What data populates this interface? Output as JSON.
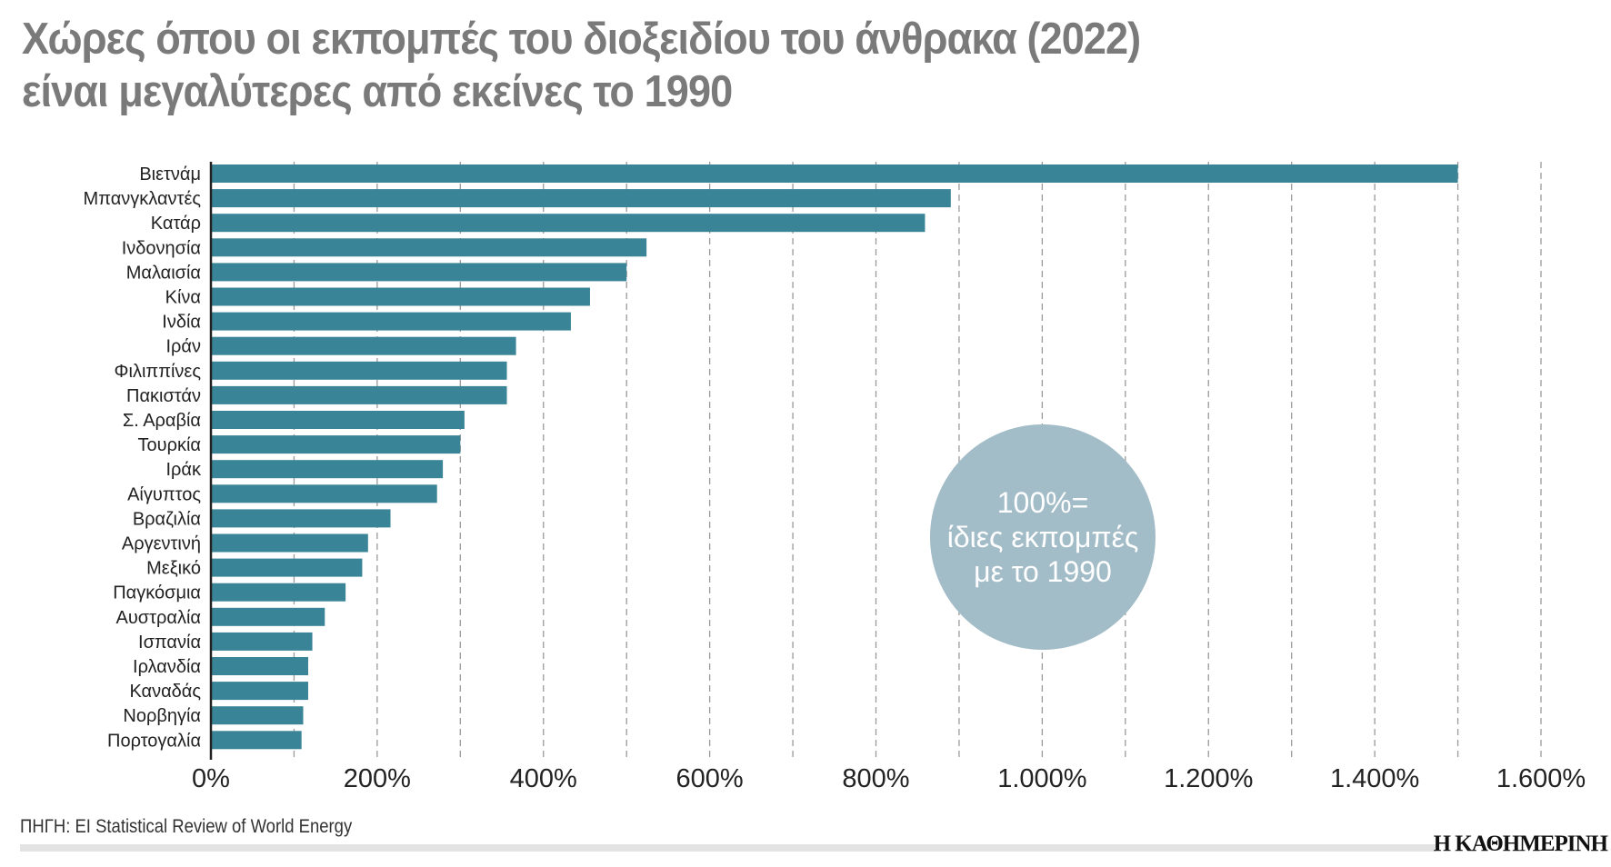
{
  "title_line1": "Χώρες όπου οι εκπομπές του διοξειδίου του άνθρακα (2022)",
  "title_line2": "είναι μεγαλύτερες από εκείνες το 1990",
  "source": "ΠΗΓΗ: EI Statistical Review of World Energy",
  "logo": "Η ΚΑΘΗΜΕΡΙΝΗ",
  "colors": {
    "bar": "#3a8497",
    "bubble": "#a2bcc8",
    "title": "#7a7a7a",
    "grid": "#9a9a9a"
  },
  "chart_data": {
    "type": "bar",
    "orientation": "horizontal",
    "categories": [
      "Βιετνάμ",
      "Μπανγκλαντές",
      "Κατάρ",
      "Ινδονησία",
      "Μαλαισία",
      "Κίνα",
      "Ινδία",
      "Ιράν",
      "Φιλιππίνες",
      "Πακιστάν",
      "Σ. Αραβία",
      "Τουρκία",
      "Ιράκ",
      "Αίγυπτος",
      "Βραζιλία",
      "Αργεντινή",
      "Μεξικό",
      "Παγκόσμια",
      "Αυστραλία",
      "Ισπανία",
      "Ιρλανδία",
      "Καναδάς",
      "Νορβηγία",
      "Πορτογαλία"
    ],
    "values": [
      1500,
      890,
      859,
      524,
      500,
      456,
      433,
      367,
      356,
      356,
      305,
      300,
      279,
      272,
      216,
      189,
      182,
      162,
      137,
      122,
      117,
      117,
      111,
      109
    ],
    "xlim": [
      0,
      1600
    ],
    "xticks": [
      0,
      200,
      400,
      600,
      800,
      1000,
      1200,
      1400,
      1600
    ],
    "xtick_labels": [
      "0%",
      "200%",
      "400%",
      "600%",
      "800%",
      "1.000%",
      "1.200%",
      "1.400%",
      "1.600%"
    ],
    "grid": "vertical dashed every 100%",
    "annotation": {
      "line1": "100%=",
      "line2": "ίδιες εκπομπές",
      "line3": "με το 1990"
    }
  }
}
